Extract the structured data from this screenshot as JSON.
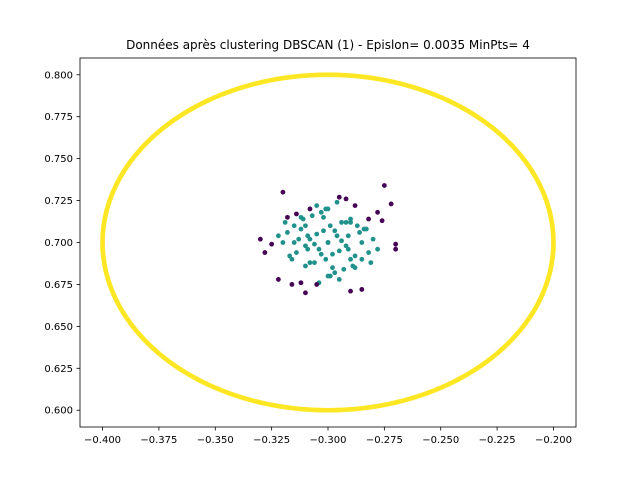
{
  "chart_data": {
    "type": "scatter",
    "title": "Données après clustering DBSCAN (1) - Epislon= 0.0035 MinPts= 4",
    "xlabel": "",
    "ylabel": "",
    "xlim": [
      -0.41,
      -0.19
    ],
    "ylim": [
      0.59,
      0.81
    ],
    "x_ticks": [
      -0.4,
      -0.375,
      -0.35,
      -0.325,
      -0.3,
      -0.275,
      -0.25,
      -0.225,
      -0.2
    ],
    "x_tick_labels": [
      "−0.400",
      "−0.375",
      "−0.350",
      "−0.325",
      "−0.300",
      "−0.275",
      "−0.250",
      "−0.225",
      "−0.200"
    ],
    "y_ticks": [
      0.6,
      0.625,
      0.65,
      0.675,
      0.7,
      0.725,
      0.75,
      0.775,
      0.8
    ],
    "y_tick_labels": [
      "0.600",
      "0.625",
      "0.650",
      "0.675",
      "0.700",
      "0.725",
      "0.750",
      "0.775",
      "0.800"
    ],
    "grid": false,
    "colors": {
      "ring": "#fde725",
      "core": "#21918c",
      "noise": "#440154",
      "axes": "#000000"
    },
    "series": [
      {
        "cluster": "ring",
        "color": "#fde725",
        "shape": "circle",
        "center": [
          -0.3,
          0.7
        ],
        "radius": 0.1,
        "points": 720
      },
      {
        "cluster": "core",
        "color": "#21918c",
        "x": [
          -0.3,
          -0.305,
          -0.295,
          -0.31,
          -0.29,
          -0.302,
          -0.298,
          -0.308,
          -0.292,
          -0.312,
          -0.288,
          -0.315,
          -0.285,
          -0.3,
          -0.3,
          -0.306,
          -0.294,
          -0.296,
          -0.304,
          -0.318,
          -0.282,
          -0.32,
          -0.28,
          -0.31,
          -0.29,
          -0.303,
          -0.297,
          -0.313,
          -0.287,
          -0.316,
          -0.284,
          -0.301,
          -0.299,
          -0.307,
          -0.293,
          -0.309,
          -0.291,
          -0.311,
          -0.289,
          -0.314,
          -0.286,
          -0.317,
          -0.283,
          -0.305,
          -0.295,
          -0.3,
          -0.302,
          -0.298,
          -0.322,
          -0.278,
          -0.319,
          -0.281,
          -0.308,
          -0.292,
          -0.304,
          -0.296,
          -0.312,
          -0.288,
          -0.306,
          -0.294,
          -0.31,
          -0.29,
          -0.315,
          -0.285,
          -0.301,
          -0.299,
          -0.303,
          -0.297,
          -0.309,
          -0.291
        ],
        "y": [
          0.7,
          0.705,
          0.695,
          0.71,
          0.69,
          0.715,
          0.685,
          0.702,
          0.698,
          0.708,
          0.692,
          0.7,
          0.7,
          0.72,
          0.68,
          0.688,
          0.712,
          0.704,
          0.696,
          0.706,
          0.694,
          0.7,
          0.702,
          0.698,
          0.712,
          0.718,
          0.682,
          0.702,
          0.71,
          0.69,
          0.708,
          0.69,
          0.71,
          0.716,
          0.684,
          0.696,
          0.704,
          0.714,
          0.686,
          0.694,
          0.706,
          0.692,
          0.708,
          0.722,
          0.678,
          0.7,
          0.707,
          0.693,
          0.704,
          0.696,
          0.712,
          0.688,
          0.688,
          0.712,
          0.676,
          0.724,
          0.715,
          0.685,
          0.699,
          0.701,
          0.686,
          0.714,
          0.71,
          0.69,
          0.72,
          0.68,
          0.693,
          0.707,
          0.704,
          0.696
        ]
      },
      {
        "cluster": "noise",
        "color": "#440154",
        "x": [
          -0.32,
          -0.272,
          -0.33,
          -0.328,
          -0.325,
          -0.27,
          -0.27,
          -0.275,
          -0.282,
          -0.285,
          -0.31,
          -0.305,
          -0.292,
          -0.288,
          -0.318,
          -0.314,
          -0.312,
          -0.316,
          -0.295,
          -0.322,
          -0.308,
          -0.29,
          -0.276,
          -0.278
        ],
        "y": [
          0.73,
          0.723,
          0.702,
          0.694,
          0.699,
          0.699,
          0.696,
          0.734,
          0.714,
          0.672,
          0.67,
          0.675,
          0.726,
          0.722,
          0.715,
          0.717,
          0.676,
          0.675,
          0.727,
          0.678,
          0.72,
          0.671,
          0.713,
          0.718
        ]
      }
    ]
  }
}
